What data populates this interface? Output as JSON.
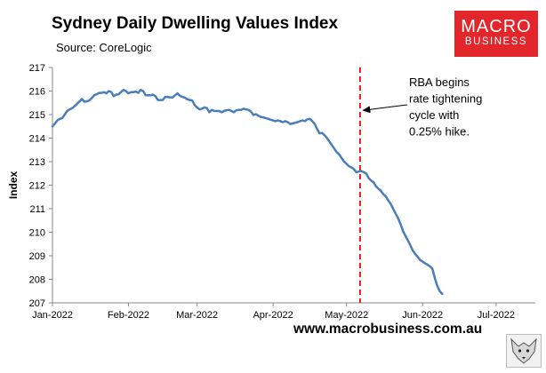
{
  "brand": {
    "logo_line1": "MACRO",
    "logo_line2": "BUSINESS",
    "logo_color": "#e3262b",
    "url": "www.macrobusiness.com.au"
  },
  "chart_data": {
    "type": "line",
    "title": "Sydney Daily Dwelling Values Index",
    "source": "Source: CoreLogic",
    "xlabel": "",
    "ylabel": "Index",
    "ylim": [
      207,
      217
    ],
    "yticks": [
      207,
      208,
      209,
      210,
      211,
      212,
      213,
      214,
      215,
      216,
      217
    ],
    "xlim": [
      0,
      197
    ],
    "xticks": [
      {
        "label": "Jan-2022",
        "day": 0
      },
      {
        "label": "Feb-2022",
        "day": 31
      },
      {
        "label": "Mar-2022",
        "day": 59
      },
      {
        "label": "Apr-2022",
        "day": 90
      },
      {
        "label": "May-2022",
        "day": 120
      },
      {
        "label": "Jun-2022",
        "day": 151
      },
      {
        "label": "Jul-2022",
        "day": 181
      }
    ],
    "grid": false,
    "series": [
      {
        "name": "Sydney daily dwelling values index",
        "color": "#4a7ebb",
        "points": [
          [
            0,
            214.5
          ],
          [
            1,
            214.62
          ],
          [
            2,
            214.75
          ],
          [
            3,
            214.82
          ],
          [
            4,
            214.85
          ],
          [
            5,
            215.0
          ],
          [
            6,
            215.15
          ],
          [
            7,
            215.22
          ],
          [
            8,
            215.27
          ],
          [
            9,
            215.35
          ],
          [
            10,
            215.45
          ],
          [
            11,
            215.55
          ],
          [
            12,
            215.66
          ],
          [
            13,
            215.55
          ],
          [
            14,
            215.56
          ],
          [
            15,
            215.6
          ],
          [
            16,
            215.7
          ],
          [
            17,
            215.82
          ],
          [
            18,
            215.86
          ],
          [
            19,
            215.92
          ],
          [
            20,
            215.92
          ],
          [
            21,
            215.95
          ],
          [
            22,
            215.9
          ],
          [
            23,
            216.0
          ],
          [
            24,
            215.95
          ],
          [
            25,
            215.78
          ],
          [
            26,
            215.85
          ],
          [
            27,
            215.86
          ],
          [
            28,
            215.96
          ],
          [
            29,
            216.05
          ],
          [
            30,
            216.0
          ],
          [
            31,
            215.9
          ],
          [
            32,
            215.95
          ],
          [
            33,
            215.95
          ],
          [
            34,
            215.98
          ],
          [
            35,
            215.92
          ],
          [
            36,
            216.05
          ],
          [
            37,
            216.0
          ],
          [
            38,
            215.82
          ],
          [
            39,
            215.82
          ],
          [
            40,
            215.82
          ],
          [
            41,
            215.85
          ],
          [
            42,
            215.78
          ],
          [
            43,
            215.62
          ],
          [
            44,
            215.62
          ],
          [
            45,
            215.62
          ],
          [
            46,
            215.75
          ],
          [
            47,
            215.75
          ],
          [
            48,
            215.73
          ],
          [
            49,
            215.73
          ],
          [
            50,
            215.82
          ],
          [
            51,
            215.9
          ],
          [
            52,
            215.8
          ],
          [
            53,
            215.75
          ],
          [
            54,
            215.72
          ],
          [
            55,
            215.65
          ],
          [
            56,
            215.62
          ],
          [
            57,
            215.6
          ],
          [
            58,
            215.4
          ],
          [
            59,
            215.3
          ],
          [
            60,
            215.22
          ],
          [
            61,
            215.25
          ],
          [
            62,
            215.3
          ],
          [
            63,
            215.28
          ],
          [
            64,
            215.1
          ],
          [
            65,
            215.2
          ],
          [
            66,
            215.15
          ],
          [
            67,
            215.15
          ],
          [
            68,
            215.15
          ],
          [
            69,
            215.1
          ],
          [
            70,
            215.15
          ],
          [
            71,
            215.18
          ],
          [
            72,
            215.2
          ],
          [
            73,
            215.15
          ],
          [
            74,
            215.1
          ],
          [
            75,
            215.18
          ],
          [
            76,
            215.2
          ],
          [
            77,
            215.2
          ],
          [
            78,
            215.25
          ],
          [
            79,
            215.22
          ],
          [
            80,
            215.2
          ],
          [
            81,
            215.12
          ],
          [
            82,
            214.98
          ],
          [
            83,
            215.02
          ],
          [
            84,
            214.95
          ],
          [
            85,
            214.9
          ],
          [
            86,
            214.88
          ],
          [
            87,
            214.85
          ],
          [
            88,
            214.82
          ],
          [
            89,
            214.78
          ],
          [
            90,
            214.75
          ],
          [
            91,
            214.72
          ],
          [
            92,
            214.75
          ],
          [
            93,
            214.72
          ],
          [
            94,
            214.68
          ],
          [
            95,
            214.72
          ],
          [
            96,
            214.68
          ],
          [
            97,
            214.6
          ],
          [
            98,
            214.62
          ],
          [
            99,
            214.65
          ],
          [
            100,
            214.68
          ],
          [
            101,
            214.72
          ],
          [
            102,
            214.75
          ],
          [
            103,
            214.72
          ],
          [
            104,
            214.8
          ],
          [
            105,
            214.82
          ],
          [
            106,
            214.72
          ],
          [
            107,
            214.6
          ],
          [
            108,
            214.38
          ],
          [
            109,
            214.2
          ],
          [
            110,
            214.22
          ],
          [
            111,
            214.12
          ],
          [
            112,
            214.0
          ],
          [
            113,
            213.85
          ],
          [
            114,
            213.7
          ],
          [
            115,
            213.55
          ],
          [
            116,
            213.4
          ],
          [
            117,
            213.3
          ],
          [
            118,
            213.15
          ],
          [
            119,
            213.0
          ],
          [
            120,
            212.9
          ],
          [
            121,
            212.8
          ],
          [
            122,
            212.75
          ],
          [
            123,
            212.68
          ],
          [
            124,
            212.55
          ],
          [
            125,
            212.58
          ],
          [
            126,
            212.6
          ],
          [
            127,
            212.55
          ],
          [
            128,
            212.5
          ],
          [
            129,
            212.3
          ],
          [
            130,
            212.2
          ],
          [
            131,
            212.12
          ],
          [
            132,
            211.95
          ],
          [
            133,
            211.85
          ],
          [
            134,
            211.75
          ],
          [
            135,
            211.62
          ],
          [
            136,
            211.52
          ],
          [
            137,
            211.35
          ],
          [
            138,
            211.2
          ],
          [
            139,
            211.0
          ],
          [
            140,
            210.8
          ],
          [
            141,
            210.6
          ],
          [
            142,
            210.35
          ],
          [
            143,
            210.05
          ],
          [
            144,
            209.85
          ],
          [
            145,
            209.65
          ],
          [
            146,
            209.45
          ],
          [
            147,
            209.22
          ],
          [
            148,
            209.08
          ],
          [
            149,
            208.95
          ],
          [
            150,
            208.82
          ],
          [
            151,
            208.75
          ],
          [
            152,
            208.68
          ],
          [
            153,
            208.62
          ],
          [
            154,
            208.55
          ],
          [
            155,
            208.45
          ],
          [
            156,
            208.05
          ],
          [
            157,
            207.72
          ],
          [
            158,
            207.5
          ],
          [
            159,
            207.38
          ]
        ]
      }
    ],
    "event_line": {
      "day": 125.5,
      "color": "#e31b23",
      "style": "dashed"
    },
    "annotation": {
      "lines": [
        "RBA begins",
        "rate tightening",
        "cycle with",
        "0.25% hike."
      ],
      "arrow_to": {
        "day": 126,
        "value": 214.8
      }
    }
  }
}
